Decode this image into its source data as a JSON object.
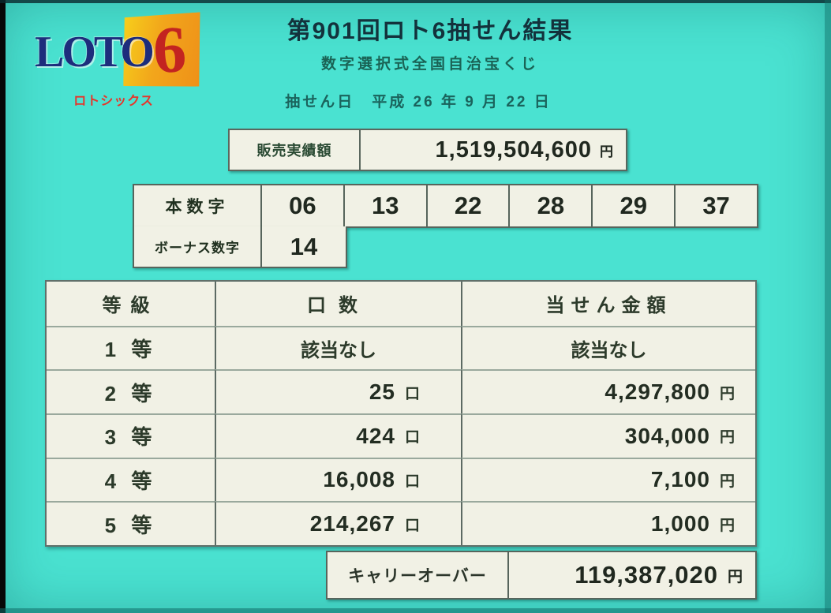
{
  "logo": {
    "word": "LOTO",
    "six": "6",
    "kana": "ロトシックス"
  },
  "header": {
    "title": "第901回ロト6抽せん結果",
    "subtitle": "数字選択式全国自治宝くじ",
    "draw_date": "抽せん日　平成 26 年 9 月 22 日"
  },
  "sales": {
    "label": "販売実績額",
    "value": "1,519,504,600",
    "unit": "円"
  },
  "numbers": {
    "main_label": "本数字",
    "main": [
      "06",
      "13",
      "22",
      "28",
      "29",
      "37"
    ],
    "bonus_label": "ボーナス数字",
    "bonus": "14"
  },
  "prize_table": {
    "headers": [
      "等級",
      "口数",
      "当せん金額"
    ],
    "rows": [
      {
        "rank": "1 等",
        "units": "該当なし",
        "units_unit": "",
        "amount": "該当なし",
        "amount_unit": ""
      },
      {
        "rank": "2 等",
        "units": "25",
        "units_unit": "口",
        "amount": "4,297,800",
        "amount_unit": "円"
      },
      {
        "rank": "3 等",
        "units": "424",
        "units_unit": "口",
        "amount": "304,000",
        "amount_unit": "円"
      },
      {
        "rank": "4 等",
        "units": "16,008",
        "units_unit": "口",
        "amount": "7,100",
        "amount_unit": "円"
      },
      {
        "rank": "5 等",
        "units": "214,267",
        "units_unit": "口",
        "amount": "1,000",
        "amount_unit": "円"
      }
    ]
  },
  "carryover": {
    "label": "キャリーオーバー",
    "value": "119,387,020",
    "unit": "円"
  },
  "colors": {
    "background": "#4ae2d1",
    "panel": "#f1f1e5",
    "logo_navy": "#1d2d7c",
    "logo_red": "#c32420",
    "logo_orange": "#f2a61b",
    "kana_red": "#e6352b",
    "title_text": "#13323c",
    "subtitle_text": "#1a6355"
  }
}
